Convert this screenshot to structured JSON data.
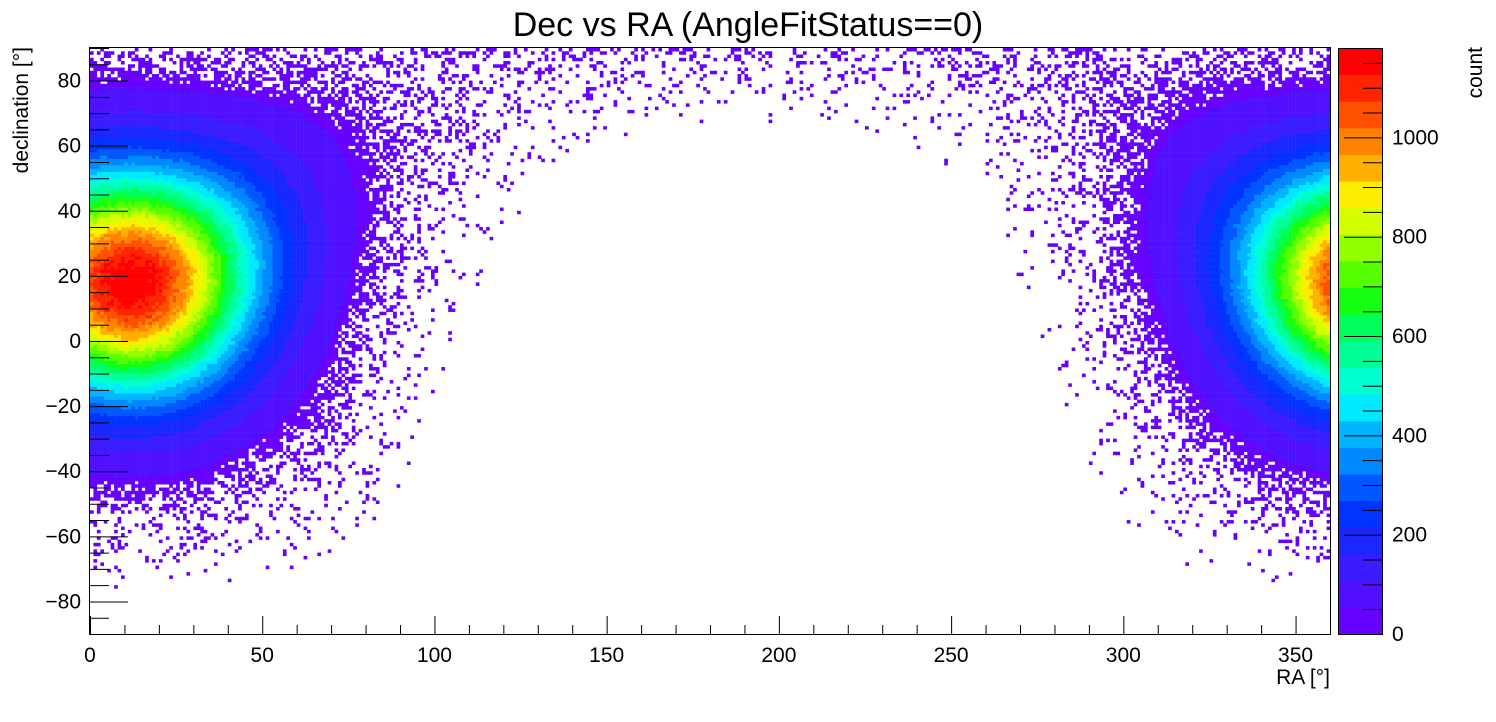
{
  "chart_data": {
    "type": "heatmap",
    "title": "Dec vs RA (AngleFitStatus==0)",
    "xlabel": "RA [°]",
    "ylabel": "declination [°]",
    "zlabel": "count",
    "xlim": [
      0,
      360
    ],
    "ylim": [
      -90,
      90
    ],
    "zlim": [
      0,
      1180
    ],
    "x_ticks": [
      0,
      50,
      100,
      150,
      200,
      250,
      300,
      350
    ],
    "x_tick_labels": [
      "0",
      "50",
      "100",
      "150",
      "200",
      "250",
      "300",
      "350"
    ],
    "y_ticks": [
      -80,
      -60,
      -40,
      -20,
      0,
      20,
      40,
      60,
      80
    ],
    "y_tick_labels": [
      "−80",
      "−60",
      "−40",
      "−20",
      "0",
      "20",
      "40",
      "60",
      "80"
    ],
    "z_ticks": [
      0,
      200,
      400,
      600,
      800,
      1000
    ],
    "z_tick_labels": [
      "0",
      "200",
      "400",
      "600",
      "800",
      "1000"
    ],
    "grid": false,
    "legend": "colorbar-right",
    "bins": {
      "nx": 360,
      "ny": 180
    },
    "peak": {
      "ra": 12,
      "dec": 18,
      "count": 1150
    },
    "sky_region": {
      "center_ra": 12,
      "center_dec": 18
    },
    "palette": [
      "#6600ff",
      "#5010ff",
      "#3a1cff",
      "#1a26ff",
      "#0033ff",
      "#0057ff",
      "#0088ff",
      "#00b4ff",
      "#00eaff",
      "#00ffd0",
      "#00ff98",
      "#00ff5a",
      "#14ff14",
      "#55ff00",
      "#94ff00",
      "#d4ff00",
      "#ffee00",
      "#ffb000",
      "#ff8200",
      "#ff5000",
      "#ff2400",
      "#ff0000"
    ]
  }
}
